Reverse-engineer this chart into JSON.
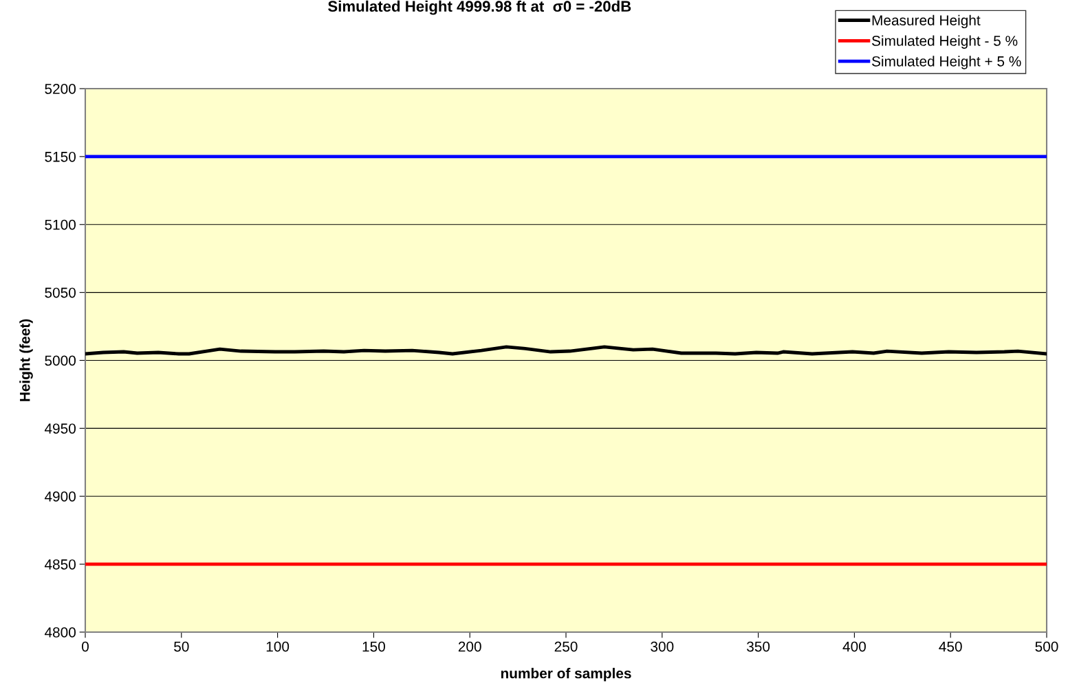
{
  "chart_data": {
    "type": "line",
    "title": "Simulated Height 4999.98 ft at  σ0 = -20dB",
    "xlabel": "number of samples",
    "ylabel": "Height (feet)",
    "series": [
      {
        "name": "Measured Height",
        "color": "#000000",
        "x": [
          0,
          9.3,
          20,
          27,
          38,
          48.6,
          54,
          70,
          81,
          98.7,
          109,
          124,
          134.5,
          145,
          156,
          170,
          184,
          191,
          206,
          219,
          228,
          242,
          252,
          270,
          285,
          295,
          310,
          328,
          338,
          349,
          360,
          363,
          378,
          399,
          410,
          417,
          435,
          449,
          463.5,
          478,
          485,
          500
        ],
        "values": [
          5004.8,
          5005.8,
          5006.3,
          5005.3,
          5005.8,
          5004.8,
          5004.8,
          5008.3,
          5006.8,
          5006.3,
          5006.3,
          5006.8,
          5006.3,
          5007.3,
          5006.8,
          5007.3,
          5005.8,
          5004.8,
          5007.3,
          5009.9,
          5008.8,
          5006.3,
          5006.8,
          5009.9,
          5007.8,
          5008.3,
          5005.3,
          5005.3,
          5004.8,
          5005.8,
          5005.3,
          5006.3,
          5004.8,
          5006.3,
          5005.3,
          5006.8,
          5005.3,
          5006.3,
          5005.8,
          5006.3,
          5006.8,
          5004.8
        ]
      },
      {
        "name": "Simulated Height - 5 %",
        "color": "#ff0000",
        "x": [
          0,
          500
        ],
        "values": [
          4850,
          4850
        ]
      },
      {
        "name": "Simulated Height + 5 %",
        "color": "#0000ff",
        "x": [
          0,
          500
        ],
        "values": [
          5150,
          5150
        ]
      }
    ],
    "xlim": [
      0,
      500
    ],
    "xticks": [
      0,
      50,
      100,
      150,
      200,
      250,
      300,
      350,
      400,
      450,
      500
    ],
    "ylim": [
      4800,
      5200
    ],
    "yticks": [
      4800,
      4850,
      4900,
      4950,
      5000,
      5050,
      5100,
      5150,
      5200
    ],
    "grid": "y",
    "legend": "top right",
    "marker": "none",
    "line_style": "solid"
  }
}
